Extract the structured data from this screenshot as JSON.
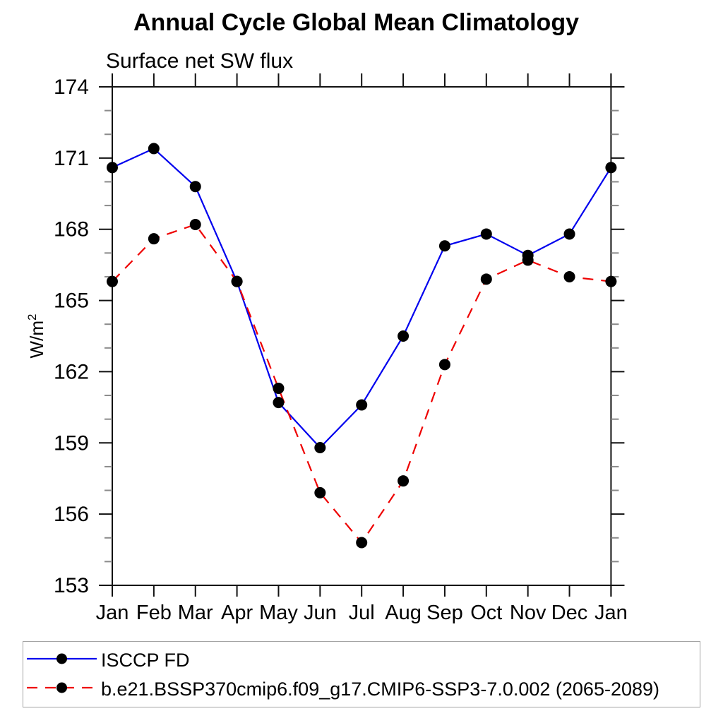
{
  "chart_data": {
    "type": "line",
    "title": "Annual Cycle Global Mean Climatology",
    "subtitle": "Surface net SW flux",
    "ylabel": "W/m²",
    "ylabel_base": "W/m",
    "ylabel_exponent": "2",
    "xlabel": "",
    "ylim": [
      153,
      174
    ],
    "yticks": [
      153,
      156,
      159,
      162,
      165,
      168,
      171,
      174
    ],
    "ytick_minor_interval": 1,
    "categories": [
      "Jan",
      "Feb",
      "Mar",
      "Apr",
      "May",
      "Jun",
      "Jul",
      "Aug",
      "Sep",
      "Oct",
      "Nov",
      "Dec",
      "Jan"
    ],
    "grid": false,
    "legend_position": "bottom-left",
    "axis_color": "#111111",
    "minor_tick_color": "#8a8a8a",
    "marker_shape": "circle",
    "series": [
      {
        "name": "ISCCP FD",
        "color": "#0000ee",
        "line_style": "solid",
        "marker_color": "#000000",
        "values": [
          170.6,
          171.4,
          169.8,
          165.8,
          160.7,
          158.8,
          160.6,
          163.5,
          167.3,
          167.8,
          166.9,
          167.8,
          170.6
        ]
      },
      {
        "name": "b.e21.BSSP370cmip6.f09_g17.CMIP6-SSP3-7.0.002 (2065-2089)",
        "color": "#ee0000",
        "line_style": "dashed",
        "marker_color": "#000000",
        "values": [
          165.8,
          167.6,
          168.2,
          165.8,
          161.3,
          156.9,
          154.8,
          157.4,
          162.3,
          165.9,
          166.7,
          166.0,
          165.8
        ]
      }
    ]
  }
}
